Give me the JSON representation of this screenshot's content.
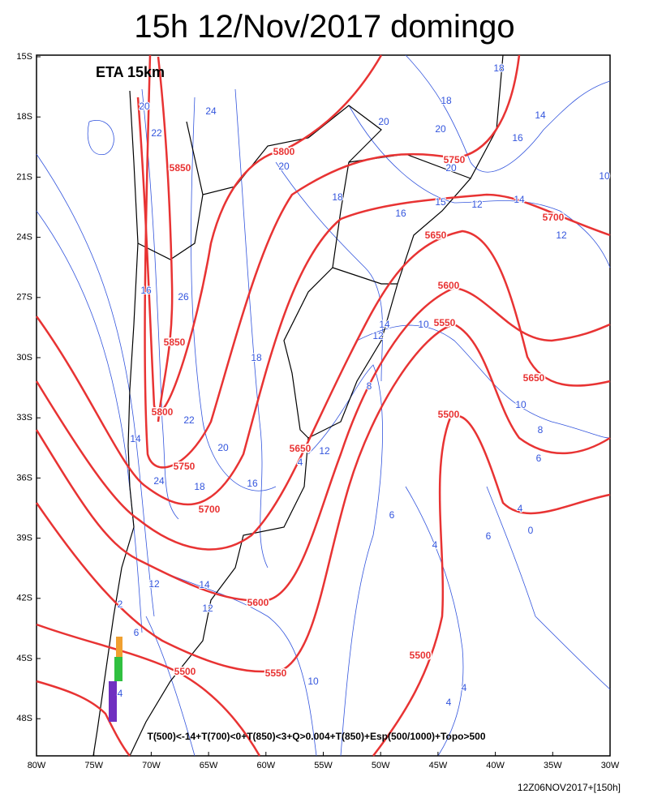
{
  "title": "15h 12/Nov/2017 domingo",
  "model_label": "ETA 15km",
  "legend_text": "T(500)<-14+T(700)<0+T(850)<3+Q>0.004+T(850)+Esp(500/1000)+Topo>500",
  "footer": "12Z06NOV2017+[150h]",
  "lat_labels": [
    "15S",
    "18S",
    "21S",
    "24S",
    "27S",
    "30S",
    "33S",
    "36S",
    "39S",
    "42S",
    "45S",
    "48S"
  ],
  "lon_labels": [
    "80W",
    "75W",
    "70W",
    "65W",
    "60W",
    "55W",
    "50W",
    "45W",
    "40W",
    "35W",
    "30W"
  ],
  "height_labels": [
    "5800",
    "5750",
    "5850",
    "5700",
    "5650",
    "5600",
    "5550",
    "5850",
    "5650",
    "5800",
    "5500",
    "5650",
    "5750",
    "5700",
    "5600",
    "5500",
    "5550",
    "5500"
  ],
  "thickness_labels": [
    "20",
    "24",
    "18",
    "18",
    "20",
    "20",
    "14",
    "16",
    "22",
    "20",
    "20",
    "10",
    "18",
    "14",
    "16",
    "12",
    "15",
    "12",
    "16",
    "26",
    "14",
    "10",
    "12",
    "18",
    "8",
    "10",
    "22",
    "8",
    "14",
    "20",
    "12",
    "4",
    "6",
    "24",
    "18",
    "16",
    "4",
    "6",
    "6",
    "4",
    "0",
    "12",
    "14",
    "12",
    "10",
    "4",
    "4",
    "6",
    "4",
    "2"
  ]
}
